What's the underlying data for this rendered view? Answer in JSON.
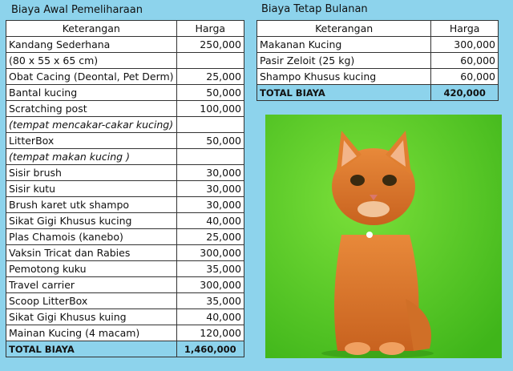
{
  "left": {
    "title": "Biaya Awal Pemeliharaan",
    "headers": [
      "Keterangan",
      "Harga"
    ],
    "rows": [
      [
        "Kandang Sederhana",
        "250,000"
      ],
      [
        "(80 x 55 x 65 cm)"
      ],
      [
        "Obat Cacing (Deontal, Pet Derm)",
        "25,000"
      ],
      [
        "Bantal kucing",
        "50,000"
      ],
      [
        "Scratching post",
        "100,000"
      ],
      [
        "(tempat mencakar-cakar kucing)"
      ],
      [
        "LitterBox",
        "50,000"
      ],
      [
        "(tempat makan kucing )"
      ],
      [
        "Sisir brush",
        "30,000"
      ],
      [
        "Sisir kutu",
        "30,000"
      ],
      [
        "Brush karet utk shampo",
        "30,000"
      ],
      [
        "Sikat Gigi Khusus kucing",
        "40,000"
      ],
      [
        "Plas Chamois (kanebo)",
        "25,000"
      ],
      [
        "Vaksin Tricat dan Rabies",
        "300,000"
      ],
      [
        "Pemotong kuku",
        "35,000"
      ],
      [
        "Travel carrier",
        "300,000"
      ],
      [
        "Scoop LitterBox",
        "35,000"
      ],
      [
        "Sikat Gigi Khusus kuing",
        "40,000"
      ],
      [
        "Mainan Kucing (4 macam)",
        "120,000"
      ]
    ],
    "total": [
      "TOTAL BIAYA",
      "1,460,000"
    ]
  },
  "right": {
    "title": "Biaya Tetap Bulanan",
    "headers": [
      "Keterangan",
      "Harga"
    ],
    "rows": [
      [
        "Makanan Kucing",
        "300,000"
      ],
      [
        "Pasir Zeloit (25 kg)",
        "60,000"
      ],
      [
        "Shampo Khusus kucing",
        "60,000"
      ]
    ],
    "total": [
      "TOTAL BIAYA",
      "420,000"
    ]
  }
}
